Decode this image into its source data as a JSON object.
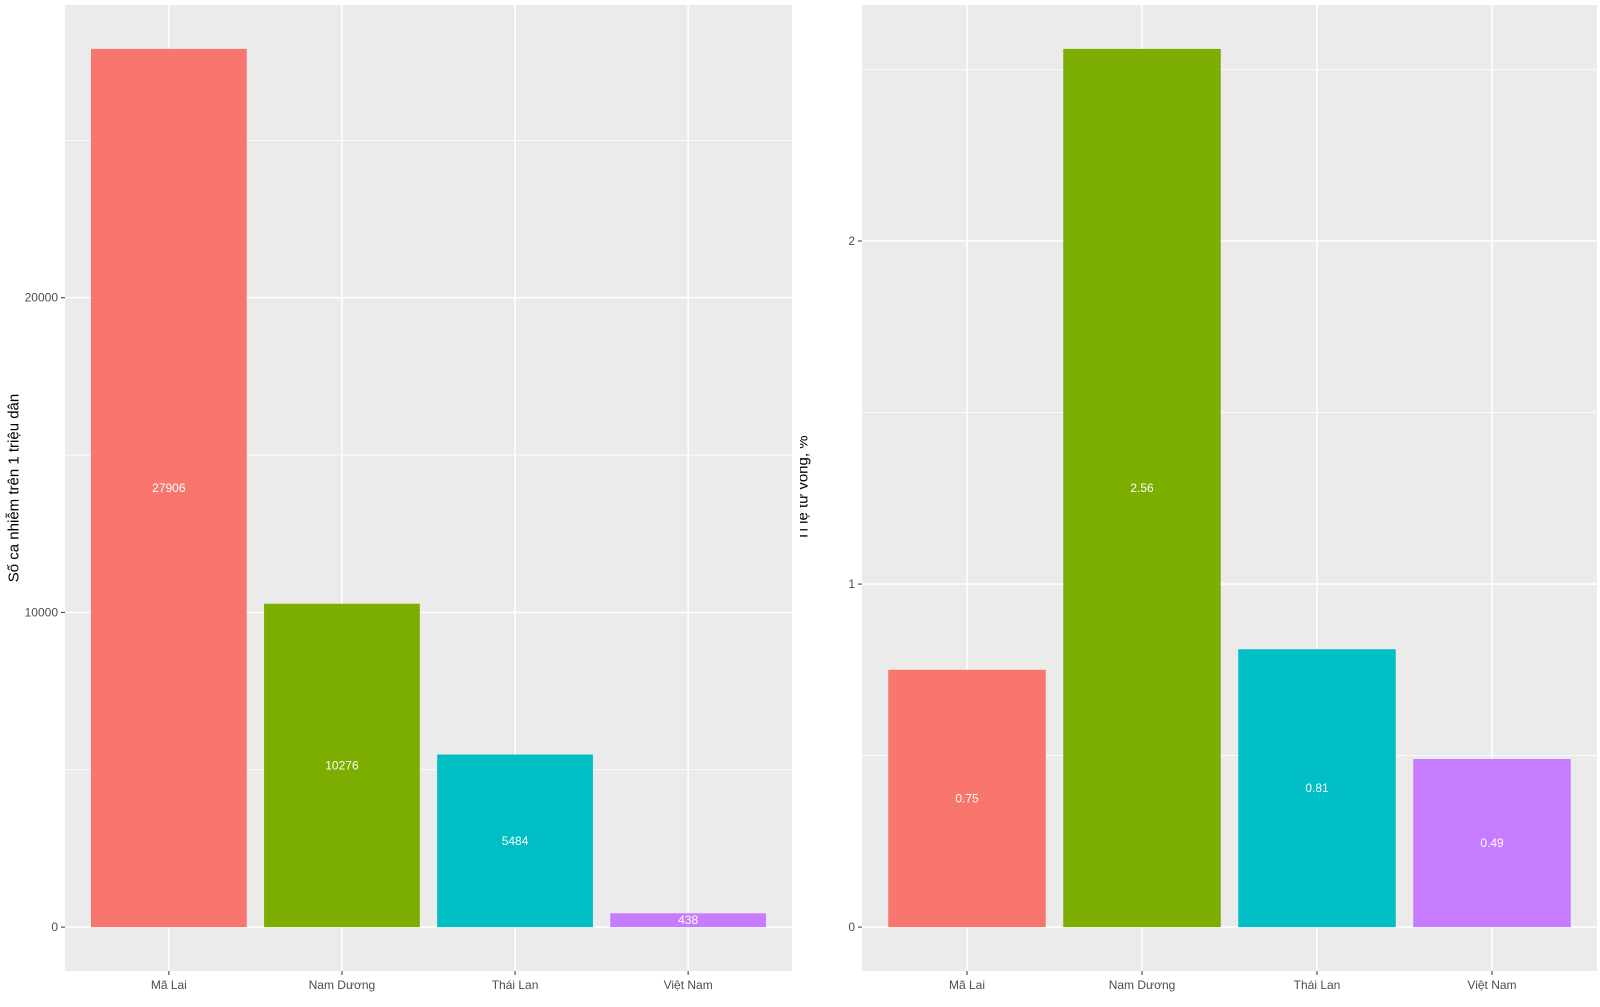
{
  "chart_data": [
    {
      "type": "bar",
      "categories": [
        "Mã Lai",
        "Nam Dương",
        "Thái Lan",
        "Việt Nam"
      ],
      "values": [
        27906,
        10276,
        5484,
        438
      ],
      "data_labels": [
        "27906",
        "10276",
        "5484",
        "438"
      ],
      "colors": [
        "#F8766D",
        "#7CAE00",
        "#00BFC4",
        "#C77CFF"
      ],
      "xlabel": "",
      "ylabel": "Số ca nhiễm trên 1 triệu dân",
      "yticks": [
        0,
        10000,
        20000
      ],
      "ytick_labels": [
        "0",
        "10000",
        "20000"
      ],
      "ylim": [
        -1395,
        29301
      ],
      "grid": true,
      "legend": "none"
    },
    {
      "type": "bar",
      "categories": [
        "Mã Lai",
        "Nam Dương",
        "Thái Lan",
        "Việt Nam"
      ],
      "values": [
        0.75,
        2.56,
        0.81,
        0.49
      ],
      "data_labels": [
        "0.75",
        "2.56",
        "0.81",
        "0.49"
      ],
      "colors": [
        "#F8766D",
        "#7CAE00",
        "#00BFC4",
        "#C77CFF"
      ],
      "xlabel": "",
      "ylabel": "Tỉ lệ tử vong, %",
      "yticks": [
        0,
        1,
        2
      ],
      "ytick_labels": [
        "0",
        "1",
        "2"
      ],
      "ylim": [
        -0.128,
        2.688
      ],
      "grid": true,
      "legend": "none"
    }
  ]
}
